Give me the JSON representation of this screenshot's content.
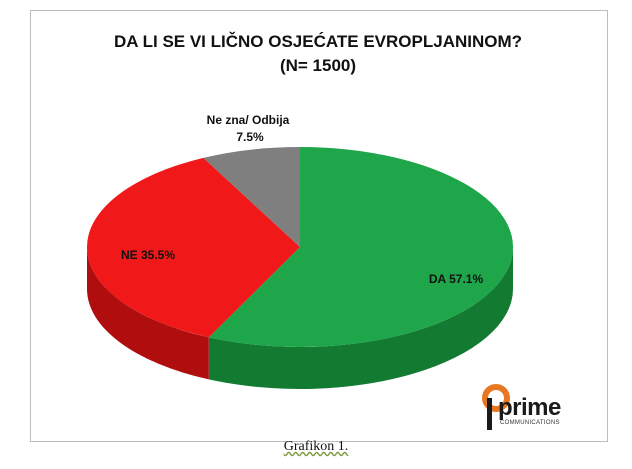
{
  "chart_data": {
    "type": "pie",
    "title": [
      "DA LI SE VI LIČNO OSJEĆATE EVROPLJANINOM?",
      "(N= 1500)"
    ],
    "slices": [
      {
        "label": "DA",
        "value": 57.1,
        "display": "DA  57.1%",
        "color": "#1fa64a",
        "side_color": "#137a32"
      },
      {
        "label": "NE",
        "value": 35.5,
        "display": "NE 35.5%",
        "color": "#f01818",
        "side_color": "#b00e0e"
      },
      {
        "label": "Ne zna/ Odbija",
        "value": 7.5,
        "display": [
          "Ne zna/ Odbija",
          "7.5%"
        ],
        "color": "#7f7f7f",
        "side_color": "#555555"
      }
    ],
    "style": "3d"
  },
  "logo": {
    "word": "prime",
    "sub": "COMMUNICATIONS",
    "accent_color": "#e87722"
  },
  "caption": "Grafikon 1."
}
